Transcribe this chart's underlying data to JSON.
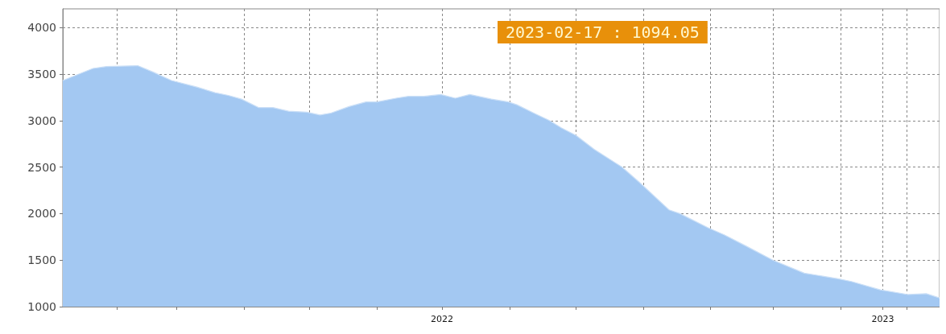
{
  "chart_data": {
    "type": "area",
    "x": [
      "2021-02-21",
      "2021-03-18",
      "2021-03-29",
      "2021-04-24",
      "2021-05-07",
      "2021-05-22",
      "2021-06-12",
      "2021-06-27",
      "2021-07-08",
      "2021-07-19",
      "2021-08-02",
      "2021-08-14",
      "2021-08-27",
      "2021-09-11",
      "2021-09-22",
      "2021-10-01",
      "2021-10-16",
      "2021-10-30",
      "2021-11-08",
      "2021-11-24",
      "2021-12-04",
      "2021-12-17",
      "2021-12-31",
      "2022-01-12",
      "2022-01-24",
      "2022-02-11",
      "2022-02-25",
      "2022-03-04",
      "2022-03-18",
      "2022-03-31",
      "2022-04-10",
      "2022-04-22",
      "2022-05-07",
      "2022-05-30",
      "2022-06-14",
      "2022-07-08",
      "2022-07-17",
      "2022-08-09",
      "2022-08-23",
      "2022-09-10",
      "2022-10-02",
      "2022-10-28",
      "2022-11-25",
      "2022-12-06",
      "2022-12-30",
      "2023-01-22",
      "2023-02-06",
      "2023-02-17"
    ],
    "series": [
      {
        "color": "#a3c8f2",
        "values": [
          3430,
          3560,
          3580,
          3590,
          3520,
          3430,
          3360,
          3300,
          3270,
          3230,
          3140,
          3140,
          3100,
          3090,
          3060,
          3080,
          3150,
          3200,
          3200,
          3240,
          3260,
          3260,
          3280,
          3240,
          3280,
          3230,
          3200,
          3170,
          3080,
          3000,
          2920,
          2840,
          2690,
          2500,
          2330,
          2040,
          2000,
          1850,
          1770,
          1650,
          1500,
          1360,
          1300,
          1270,
          1180,
          1130,
          1140,
          1094.05
        ]
      }
    ],
    "xlim": [
      "2021-02-21",
      "2023-02-17"
    ],
    "xticks": [
      {
        "value": "2021-04-07",
        "label": null
      },
      {
        "value": "2021-05-26",
        "label": null
      },
      {
        "value": "2021-07-21",
        "label": null
      },
      {
        "value": "2021-09-13",
        "label": null
      },
      {
        "value": "2021-11-08",
        "label": null
      },
      "2022",
      {
        "value": "2022-02-26",
        "label": null
      },
      {
        "value": "2022-04-22",
        "label": null
      },
      {
        "value": "2022-06-17",
        "label": null
      },
      {
        "value": "2022-08-11",
        "label": null
      },
      {
        "value": "2022-10-02",
        "label": null
      },
      {
        "value": "2022-11-27",
        "label": null
      },
      "2023",
      {
        "value": "2023-01-21",
        "label": null
      }
    ],
    "ylim": [
      1000,
      4200
    ],
    "yticks": [
      1000,
      1500,
      2000,
      2500,
      3000,
      3500,
      4000
    ],
    "grid": true,
    "annotations": [
      "2023-02-17 : 1094.05"
    ]
  }
}
